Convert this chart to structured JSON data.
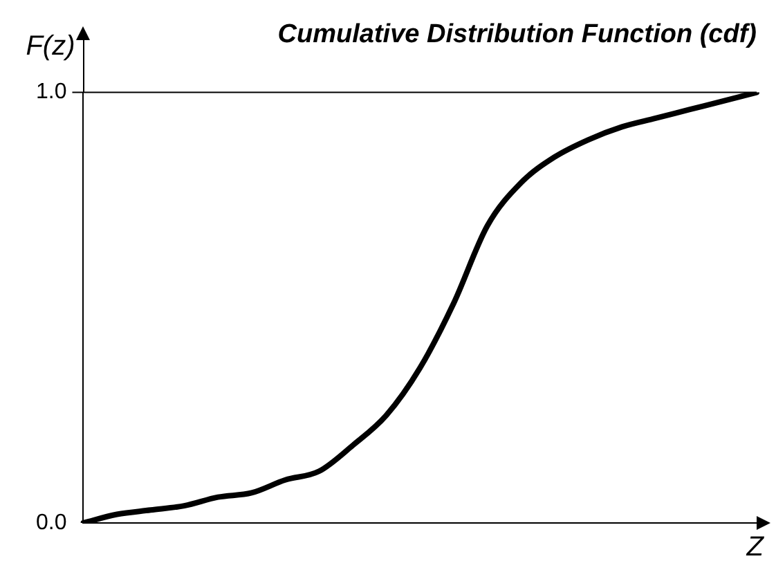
{
  "chart_data": {
    "type": "line",
    "title": "Cumulative Distribution Function (cdf)",
    "xlabel": "Z",
    "ylabel": "F(z)",
    "categories": [
      null,
      null,
      null,
      null,
      null,
      null,
      null,
      null,
      null,
      null,
      null,
      null,
      null,
      null,
      null,
      null,
      null,
      null,
      null,
      null,
      null
    ],
    "series": [
      {
        "color": "#000000",
        "values": [
          0,
          0.02,
          0.03,
          0.04,
          0.06,
          0.07,
          0.1,
          0.12,
          0.18,
          0.25,
          0.36,
          0.51,
          0.69,
          0.79,
          0.85,
          0.89,
          0.92,
          0.94,
          0.96,
          0.98,
          1.0
        ]
      }
    ],
    "ylim": [
      0,
      1.0
    ],
    "yticks": [
      {
        "value": 0,
        "label": "0.0"
      },
      {
        "value": 1.0,
        "label": "1.0"
      }
    ],
    "ref_lines": [
      {
        "axis": "y",
        "value": 1.0
      }
    ],
    "legend": false,
    "tick_labels": "y",
    "marker": "none",
    "line_style": "solid"
  }
}
